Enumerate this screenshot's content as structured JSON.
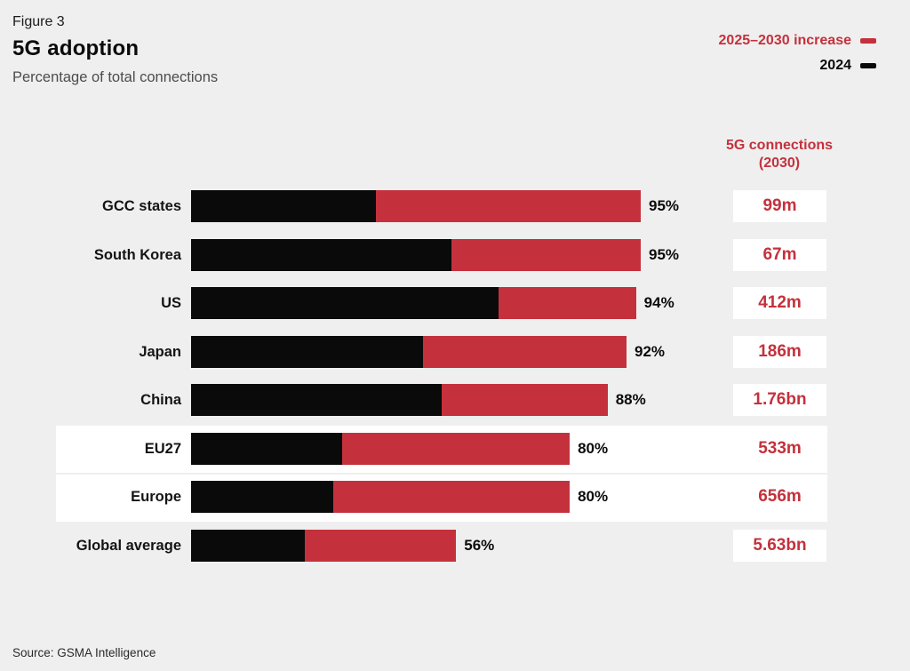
{
  "header": {
    "figure_label": "Figure 3",
    "title": "5G adoption",
    "subtitle": "Percentage of total connections"
  },
  "legend": {
    "items": [
      {
        "label": "2025–2030 increase",
        "color": "#C4313C"
      },
      {
        "label": "2024",
        "color": "#0A0A0A"
      }
    ]
  },
  "value_column": {
    "header_line1": "5G connections",
    "header_line2": "(2030)"
  },
  "source": "Source: GSMA Intelligence",
  "colors": {
    "background": "#EFEFEF",
    "red": "#C4313C",
    "black": "#0A0A0A",
    "highlight_band": "#FFFFFF"
  },
  "chart_data": {
    "type": "bar",
    "orientation": "horizontal",
    "stacked": true,
    "title": "5G adoption",
    "subtitle": "Percentage of total connections",
    "unit": "% of total connections",
    "xlim": [
      0,
      95
    ],
    "series_names": [
      "2024",
      "2025–2030 increase"
    ],
    "rows": [
      {
        "label": "GCC states",
        "pct_2024": 39,
        "pct_increase_2025_2030": 56,
        "total_pct": 95,
        "total_label": "95%",
        "connections_2030": "99m",
        "highlighted": false
      },
      {
        "label": "South Korea",
        "pct_2024": 55,
        "pct_increase_2025_2030": 40,
        "total_pct": 95,
        "total_label": "95%",
        "connections_2030": "67m",
        "highlighted": false
      },
      {
        "label": "US",
        "pct_2024": 65,
        "pct_increase_2025_2030": 29,
        "total_pct": 94,
        "total_label": "94%",
        "connections_2030": "412m",
        "highlighted": false
      },
      {
        "label": "Japan",
        "pct_2024": 49,
        "pct_increase_2025_2030": 43,
        "total_pct": 92,
        "total_label": "92%",
        "connections_2030": "186m",
        "highlighted": false
      },
      {
        "label": "China",
        "pct_2024": 53,
        "pct_increase_2025_2030": 35,
        "total_pct": 88,
        "total_label": "88%",
        "connections_2030": "1.76bn",
        "highlighted": false
      },
      {
        "label": "EU27",
        "pct_2024": 32,
        "pct_increase_2025_2030": 48,
        "total_pct": 80,
        "total_label": "80%",
        "connections_2030": "533m",
        "highlighted": true
      },
      {
        "label": "Europe",
        "pct_2024": 30,
        "pct_increase_2025_2030": 50,
        "total_pct": 80,
        "total_label": "80%",
        "connections_2030": "656m",
        "highlighted": true
      },
      {
        "label": "Global average",
        "pct_2024": 24,
        "pct_increase_2025_2030": 32,
        "total_pct": 56,
        "total_label": "56%",
        "connections_2030": "5.63bn",
        "highlighted": false
      }
    ]
  }
}
